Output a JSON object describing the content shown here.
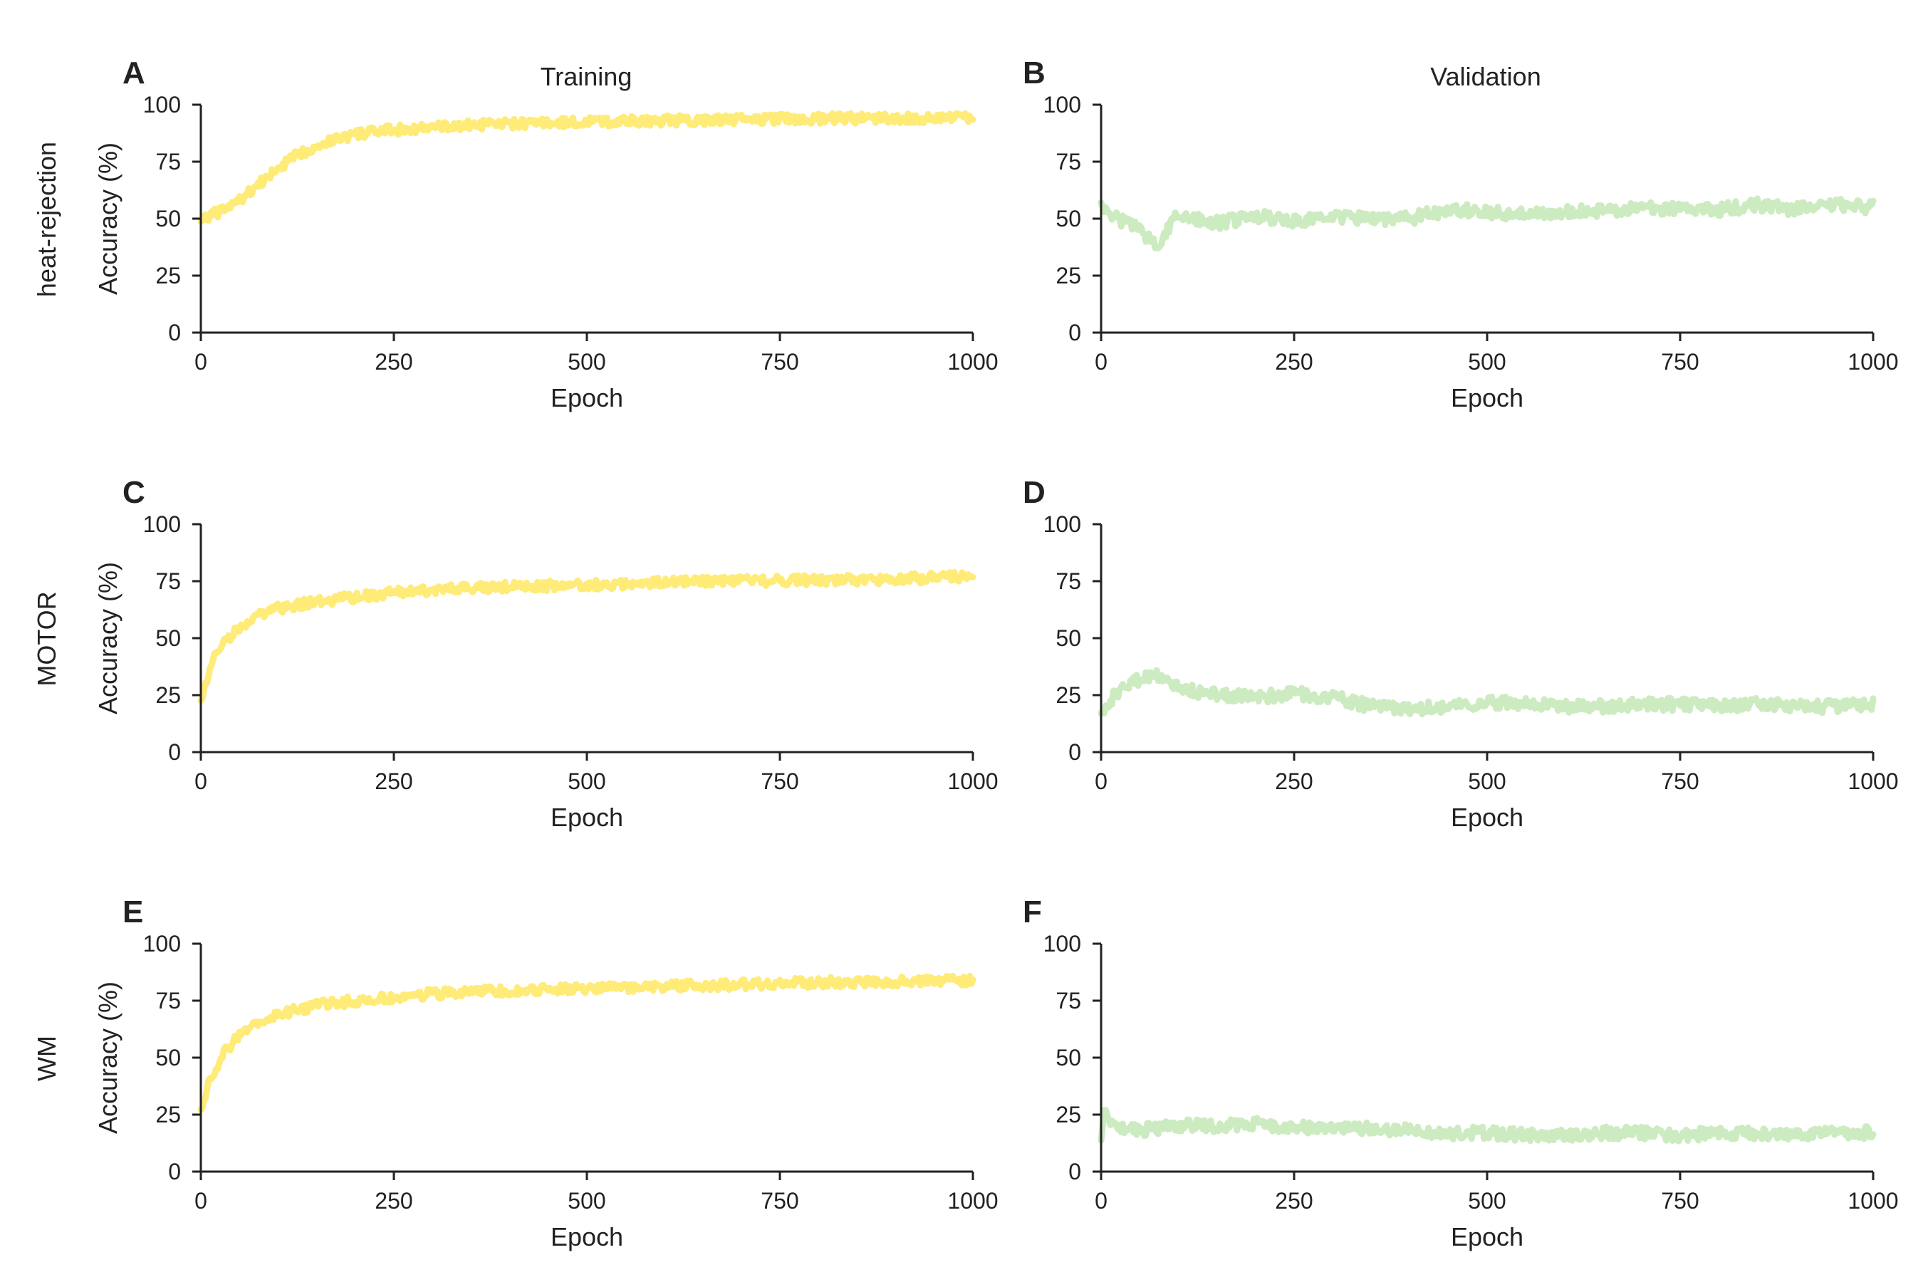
{
  "column_titles": [
    "Training",
    "Validation"
  ],
  "row_labels": [
    "heat-rejection",
    "MOTOR",
    "WM"
  ],
  "colors": {
    "training": "#ffeb78",
    "validation": "#cdebc0",
    "axis": "#222222"
  },
  "chart_data": [
    {
      "panel": "A",
      "type": "line",
      "xlabel": "Epoch",
      "ylabel": "Accuracy (%)",
      "xlim": [
        0,
        1000
      ],
      "ylim": [
        0,
        100
      ],
      "xticks": [
        "0",
        "250",
        "500",
        "750",
        "1000"
      ],
      "yticks": [
        "0",
        "25",
        "50",
        "75",
        "100"
      ],
      "series": [
        {
          "color": "#ffeb78",
          "x": [
            0,
            25,
            50,
            75,
            100,
            125,
            150,
            175,
            200,
            250,
            300,
            350,
            400,
            450,
            500,
            600,
            700,
            800,
            900,
            1000
          ],
          "y": [
            50,
            53,
            58,
            65,
            72,
            78,
            82,
            85,
            87,
            89,
            90,
            91,
            91.5,
            92,
            92.5,
            93,
            93.5,
            94,
            94,
            94.5
          ]
        }
      ]
    },
    {
      "panel": "B",
      "type": "line",
      "xlabel": "Epoch",
      "ylabel": "",
      "xlim": [
        0,
        1000
      ],
      "ylim": [
        0,
        100
      ],
      "xticks": [
        "0",
        "250",
        "500",
        "750",
        "1000"
      ],
      "yticks": [
        "0",
        "25",
        "50",
        "75",
        "100"
      ],
      "series": [
        {
          "color": "#cdebc0",
          "x": [
            0,
            10,
            20,
            40,
            60,
            70,
            80,
            100,
            120,
            150,
            200,
            250,
            300,
            350,
            400,
            450,
            500,
            550,
            600,
            650,
            700,
            750,
            800,
            850,
            900,
            950,
            1000
          ],
          "y": [
            58,
            52,
            50,
            48,
            42,
            38,
            42,
            52,
            50,
            48,
            51,
            49,
            51,
            50,
            50,
            54,
            53,
            52,
            53,
            53,
            55,
            54,
            54,
            56,
            54,
            56,
            55
          ]
        }
      ]
    },
    {
      "panel": "C",
      "type": "line",
      "xlabel": "Epoch",
      "ylabel": "Accuracy (%)",
      "xlim": [
        0,
        1000
      ],
      "ylim": [
        0,
        100
      ],
      "xticks": [
        "0",
        "250",
        "500",
        "750",
        "1000"
      ],
      "yticks": [
        "0",
        "25",
        "50",
        "75",
        "100"
      ],
      "series": [
        {
          "color": "#ffeb78",
          "x": [
            0,
            10,
            20,
            30,
            50,
            75,
            100,
            150,
            200,
            250,
            300,
            400,
            500,
            600,
            700,
            800,
            900,
            1000
          ],
          "y": [
            22,
            35,
            43,
            48,
            55,
            60,
            63,
            66,
            68,
            70,
            71,
            72.5,
            73.5,
            74.5,
            75,
            75.5,
            76,
            77
          ]
        }
      ]
    },
    {
      "panel": "D",
      "type": "line",
      "xlabel": "Epoch",
      "ylabel": "",
      "xlim": [
        0,
        1000
      ],
      "ylim": [
        0,
        100
      ],
      "xticks": [
        "0",
        "250",
        "500",
        "750",
        "1000"
      ],
      "yticks": [
        "0",
        "25",
        "50",
        "75",
        "100"
      ],
      "series": [
        {
          "color": "#cdebc0",
          "x": [
            0,
            10,
            25,
            50,
            75,
            100,
            150,
            200,
            250,
            300,
            350,
            400,
            450,
            500,
            550,
            600,
            650,
            700,
            750,
            800,
            850,
            900,
            950,
            1000
          ],
          "y": [
            18,
            22,
            28,
            32,
            34,
            28,
            25,
            24,
            26,
            24,
            20,
            19,
            20,
            22,
            21,
            20,
            20,
            21,
            21,
            20,
            21,
            20,
            20,
            21
          ]
        }
      ]
    },
    {
      "panel": "E",
      "type": "line",
      "xlabel": "Epoch",
      "ylabel": "Accuracy (%)",
      "xlim": [
        0,
        1000
      ],
      "ylim": [
        0,
        100
      ],
      "xticks": [
        "0",
        "250",
        "500",
        "750",
        "1000"
      ],
      "yticks": [
        "0",
        "25",
        "50",
        "75",
        "100"
      ],
      "series": [
        {
          "color": "#ffeb78",
          "x": [
            0,
            10,
            20,
            30,
            50,
            75,
            100,
            150,
            200,
            250,
            300,
            400,
            500,
            600,
            700,
            800,
            900,
            1000
          ],
          "y": [
            25,
            38,
            46,
            52,
            60,
            65,
            69,
            73,
            75,
            76.5,
            78,
            79.5,
            80.5,
            81.5,
            82,
            83,
            83.5,
            84
          ]
        }
      ]
    },
    {
      "panel": "F",
      "type": "line",
      "xlabel": "Epoch",
      "ylabel": "",
      "xlim": [
        0,
        1000
      ],
      "ylim": [
        0,
        100
      ],
      "xticks": [
        "0",
        "250",
        "500",
        "750",
        "1000"
      ],
      "yticks": [
        "0",
        "25",
        "50",
        "75",
        "100"
      ],
      "series": [
        {
          "color": "#cdebc0",
          "x": [
            0,
            5,
            10,
            20,
            50,
            100,
            150,
            200,
            250,
            300,
            350,
            400,
            450,
            500,
            550,
            600,
            650,
            700,
            750,
            800,
            850,
            900,
            950,
            1000
          ],
          "y": [
            15,
            28,
            22,
            19,
            18,
            20,
            20,
            21,
            19,
            20,
            19,
            18,
            17,
            17,
            16,
            16,
            17,
            17,
            16,
            17,
            17,
            16,
            17,
            17
          ]
        }
      ]
    }
  ]
}
